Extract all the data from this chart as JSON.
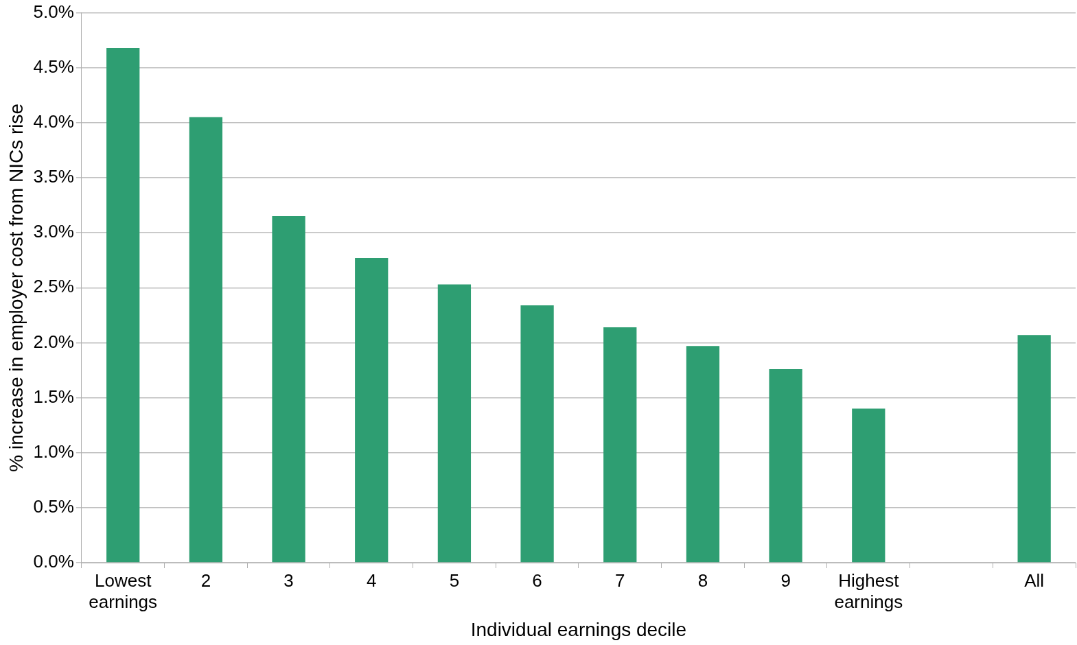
{
  "chart_data": {
    "type": "bar",
    "xlabel": "Individual earnings decile",
    "ylabel": "% increase in employer cost from NICs rise",
    "categories": [
      "Lowest earnings",
      "2",
      "3",
      "4",
      "5",
      "6",
      "7",
      "8",
      "9",
      "Highest earnings",
      null,
      "All"
    ],
    "values": [
      4.68,
      4.05,
      3.15,
      2.77,
      2.53,
      2.34,
      2.14,
      1.97,
      1.76,
      1.4,
      null,
      2.07
    ],
    "color": "#2e9e72",
    "ylim": [
      0,
      5
    ],
    "yticks": [
      {
        "value": 0,
        "label": "0.0%"
      },
      {
        "value": 0.5,
        "label": "0.5%"
      },
      {
        "value": 1,
        "label": "1.0%"
      },
      {
        "value": 1.5,
        "label": "1.5%"
      },
      {
        "value": 2,
        "label": "2.0%"
      },
      {
        "value": 2.5,
        "label": "2.5%"
      },
      {
        "value": 3,
        "label": "3.0%"
      },
      {
        "value": 3.5,
        "label": "3.5%"
      },
      {
        "value": 4,
        "label": "4.0%"
      },
      {
        "value": 4.5,
        "label": "4.5%"
      },
      {
        "value": 5,
        "label": "5.0%"
      }
    ],
    "grid": "y"
  }
}
